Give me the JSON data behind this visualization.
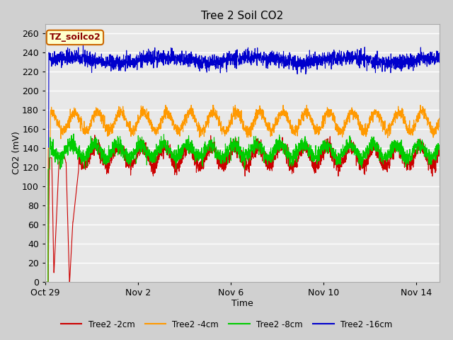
{
  "title": "Tree 2 Soil CO2",
  "xlabel": "Time",
  "ylabel": "CO2 (mV)",
  "ylim": [
    0,
    270
  ],
  "yticks": [
    0,
    20,
    40,
    60,
    80,
    100,
    120,
    140,
    160,
    180,
    200,
    220,
    240,
    260
  ],
  "plot_bg_color": "#e8e8e8",
  "fig_bg_color": "#d0d0d0",
  "series": [
    {
      "label": "Tree2 -2cm",
      "color": "#cc0000"
    },
    {
      "label": "Tree2 -4cm",
      "color": "#ff9900"
    },
    {
      "label": "Tree2 -8cm",
      "color": "#00cc00"
    },
    {
      "label": "Tree2 -16cm",
      "color": "#0000cc"
    }
  ],
  "annotation_text": "TZ_soilco2",
  "annotation_bg": "#ffffcc",
  "annotation_border": "#cc6600",
  "x_tick_labels": [
    "Oct 29",
    "Nov 2",
    "Nov 6",
    "Nov 10",
    "Nov 14"
  ],
  "x_tick_positions": [
    0,
    4,
    8,
    12,
    16
  ],
  "total_days": 17,
  "figsize": [
    6.4,
    4.8
  ],
  "dpi": 100
}
